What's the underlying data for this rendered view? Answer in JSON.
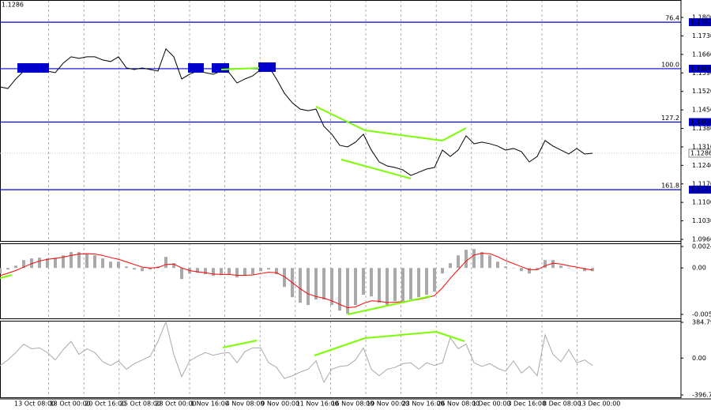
{
  "chart_data": [
    {
      "type": "line",
      "current_price": 1.1286,
      "ylim": [
        1.0951,
        1.1866
      ],
      "yticks": [
        {
          "value": 1.18,
          "label": "1.1800"
        },
        {
          "value": 1.173,
          "label": "1.1730"
        },
        {
          "value": 1.166,
          "label": "1.1660"
        },
        {
          "value": 1.159,
          "label": "1.1590"
        },
        {
          "value": 1.152,
          "label": "1.1520"
        },
        {
          "value": 1.145,
          "label": "1.1450"
        },
        {
          "value": 1.138,
          "label": "1.1380"
        },
        {
          "value": 1.131,
          "label": "1.1310"
        },
        {
          "value": 1.124,
          "label": "1.1240"
        },
        {
          "value": 1.117,
          "label": "1.1170"
        },
        {
          "value": 1.11,
          "label": "1.1100"
        },
        {
          "value": 1.103,
          "label": "1.1030"
        },
        {
          "value": 1.096,
          "label": "1.0960"
        }
      ],
      "levels": [
        {
          "name": "76.4",
          "value": 1.1782
        },
        {
          "name": "100.0",
          "value": 1.1606
        },
        {
          "name": "127.2",
          "value": 1.1404
        },
        {
          "name": "161.8",
          "value": 1.1148
        }
      ],
      "level_color": "#0000cd",
      "series": [
        {
          "color": "#000000",
          "values": [
            1.1537,
            1.1531,
            1.1567,
            1.1597,
            1.1603,
            1.1609,
            1.1597,
            1.1591,
            1.1627,
            1.1651,
            1.1645,
            1.1651,
            1.1651,
            1.1639,
            1.1633,
            1.1651,
            1.1609,
            1.1603,
            1.1609,
            1.1603,
            1.1597,
            1.1681,
            1.1651,
            1.1567,
            1.1585,
            1.1597,
            1.1591,
            1.1585,
            1.1597,
            1.1591,
            1.1552,
            1.1567,
            1.1579,
            1.1603,
            1.1615,
            1.1567,
            1.1513,
            1.1477,
            1.1453,
            1.1447,
            1.1453,
            1.1388,
            1.1358,
            1.1316,
            1.131,
            1.1328,
            1.1358,
            1.1298,
            1.1253,
            1.1238,
            1.1232,
            1.1223,
            1.1202,
            1.1214,
            1.1226,
            1.1232,
            1.1298,
            1.1274,
            1.1298,
            1.1352,
            1.1322,
            1.1328,
            1.1322,
            1.1313,
            1.1298,
            1.1304,
            1.1292,
            1.1253,
            1.1274,
            1.1334,
            1.1313,
            1.1298,
            1.1283,
            1.1304,
            1.1283,
            1.1286
          ]
        }
      ],
      "time_labels": [
        "13 Oct 08:00",
        "18 Oct 00:00",
        "20 Oct 16:00",
        "25 Oct 08:00",
        "28 Oct 00:00",
        "1 Nov 16:00",
        "4 Nov 08:00",
        "9 Nov 00:00",
        "11 Nov 16:00",
        "16 Nov 08:00",
        "19 Nov 00:00",
        "23 Nov 16:00",
        "26 Nov 08:00",
        "1 Dec 00:00",
        "3 Dec 16:00",
        "8 Dec 08:00",
        "13 Dec 00:00"
      ]
    },
    {
      "type": "bar",
      "ylim": [
        -0.00592,
        0.00285
      ],
      "yticks": [
        0.00248,
        {
          "value": 0,
          "label": "0.00"
        },
        -0.00537
      ],
      "series": [
        {
          "type": "bar",
          "color": "#a9a9a9",
          "values": [
            -0.00064,
            -0.00018,
            0.00027,
            0.00091,
            0.0011,
            0.00119,
            0.0011,
            0.00119,
            0.00146,
            0.00183,
            0.00183,
            0.00164,
            0.00146,
            0.0011,
            0.00073,
            0.00073,
            0.00018,
            -0.00018,
            -0.00037,
            -0.00018,
            0.00018,
            0.00128,
            0.00055,
            -0.00128,
            -0.00064,
            -0.00055,
            -0.00073,
            -0.00091,
            -0.00082,
            -0.00073,
            -0.0011,
            -0.00091,
            -0.00073,
            -0.00037,
            -0.00018,
            -0.00073,
            -0.00219,
            -0.00338,
            -0.00402,
            -0.00429,
            -0.00365,
            -0.00365,
            -0.00429,
            -0.00493,
            -0.0053,
            -0.00429,
            -0.0031,
            -0.00329,
            -0.00402,
            -0.00429,
            -0.00383,
            -0.00383,
            -0.00365,
            -0.00338,
            -0.0031,
            -0.00274,
            -0.00064,
            0.00055,
            0.00146,
            0.0021,
            0.00219,
            0.00183,
            0.00146,
            0.00073,
            0.00018,
            0,
            -0.00037,
            -0.00064,
            -0.00018,
            0.00091,
            0.00091,
            0.00027,
            0,
            0,
            -0.00037,
            -0.00037
          ]
        },
        {
          "type": "line",
          "color": "#ff0000",
          "values": [
            -0.0009,
            -0.0006,
            -0.0003,
            0.0001,
            0.0005,
            0.0008,
            0.001,
            0.0011,
            0.00125,
            0.00145,
            0.0016,
            0.00165,
            0.0016,
            0.00145,
            0.0012,
            0.001,
            0.0007,
            0.0004,
            0.0001,
            0,
            5e-05,
            0.0004,
            0.00045,
            0,
            -0.0003,
            -0.00045,
            -0.00055,
            -0.0007,
            -0.00075,
            -0.00075,
            -0.00085,
            -0.00085,
            -0.0008,
            -0.00065,
            -0.0005,
            -0.00055,
            -0.001,
            -0.0017,
            -0.0024,
            -0.003,
            -0.0033,
            -0.0035,
            -0.0038,
            -0.0042,
            -0.0046,
            -0.0045,
            -0.0041,
            -0.0038,
            -0.00385,
            -0.004,
            -0.00395,
            -0.0039,
            -0.0038,
            -0.00365,
            -0.00345,
            -0.0032,
            -0.0023,
            -0.0012,
            -0.0002,
            0.0008,
            0.0015,
            0.0017,
            0.00165,
            0.0013,
            0.00085,
            0.0005,
            0.00015,
            -0.0002,
            -0.0002,
            0.00025,
            0.00055,
            0.00045,
            0.00025,
            0.0001,
            -0.0001,
            -0.00025
          ]
        }
      ]
    },
    {
      "type": "line",
      "ylim": [
        -431,
        402
      ],
      "yticks": [
        384.7985,
        {
          "value": 0,
          "label": "0.00"
        },
        {
          "value": -396.73,
          "label": "-396.730"
        }
      ],
      "series": [
        {
          "color": "#a9a9a9",
          "values": [
            -80,
            -20,
            60,
            150,
            100,
            110,
            60,
            -20,
            90,
            180,
            40,
            100,
            60,
            -40,
            -80,
            -30,
            -120,
            -60,
            -20,
            20,
            180,
            390,
            40,
            -200,
            -30,
            20,
            60,
            30,
            50,
            60,
            -50,
            70,
            110,
            110,
            -50,
            -100,
            -220,
            -190,
            -150,
            -120,
            -30,
            -260,
            -120,
            -90,
            -80,
            -20,
            110,
            -120,
            -190,
            -120,
            -100,
            -60,
            -50,
            -120,
            -50,
            -80,
            -50,
            220,
            100,
            150,
            -50,
            -90,
            -60,
            -110,
            -140,
            -30,
            -160,
            -90,
            -190,
            250,
            40,
            -40,
            90,
            -50,
            -20,
            -80
          ]
        }
      ]
    }
  ]
}
